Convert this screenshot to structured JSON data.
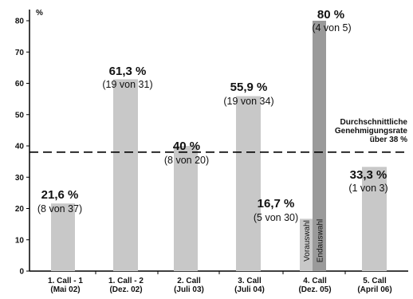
{
  "chart_data": {
    "type": "bar",
    "unit": "%",
    "ylim": [
      0,
      85
    ],
    "yticks": [
      0,
      10,
      20,
      30,
      40,
      50,
      60,
      70,
      80
    ],
    "categories": [
      [
        "1. Call - 1",
        "(Mai 02)"
      ],
      [
        "1. Call - 2",
        "(Dez. 02)"
      ],
      [
        "2. Call",
        "(Juli 03)"
      ],
      [
        "3. Call",
        "(Juli 04)"
      ],
      [
        "4. Call",
        "(Dez. 05)"
      ],
      [
        "5. Call",
        "(April 06)"
      ]
    ],
    "bars": [
      {
        "value": 21.6,
        "pct_label": "21,6 %",
        "count_label": "(8 von 37)",
        "color": "#c8c8c8"
      },
      {
        "value": 61.3,
        "pct_label": "61,3 %",
        "count_label": "(19 von 31)",
        "color": "#c8c8c8"
      },
      {
        "value": 40,
        "pct_label": "40 %",
        "count_label": "(8 von 20)",
        "color": "#c8c8c8"
      },
      {
        "value": 55.9,
        "pct_label": "55,9 %",
        "count_label": "(19 von 34)",
        "color": "#c8c8c8"
      },
      {
        "value": 16.7,
        "pct_label": "16,7 %",
        "count_label": "(5 von 30)",
        "color": "#c8c8c8",
        "bar_label": "Vorauswahl"
      },
      {
        "value": 80,
        "pct_label": "80 %",
        "count_label": "(4 von 5)",
        "color": "#9a9a9a",
        "bar_label": "Endauswahl"
      },
      {
        "value": 33.3,
        "pct_label": "33,3 %",
        "count_label": "(1 von 3)",
        "color": "#c8c8c8"
      }
    ],
    "average": {
      "value": 38,
      "label": [
        "Durchschnittliche",
        "Genehmigungsrate",
        "über 38 %"
      ]
    }
  }
}
